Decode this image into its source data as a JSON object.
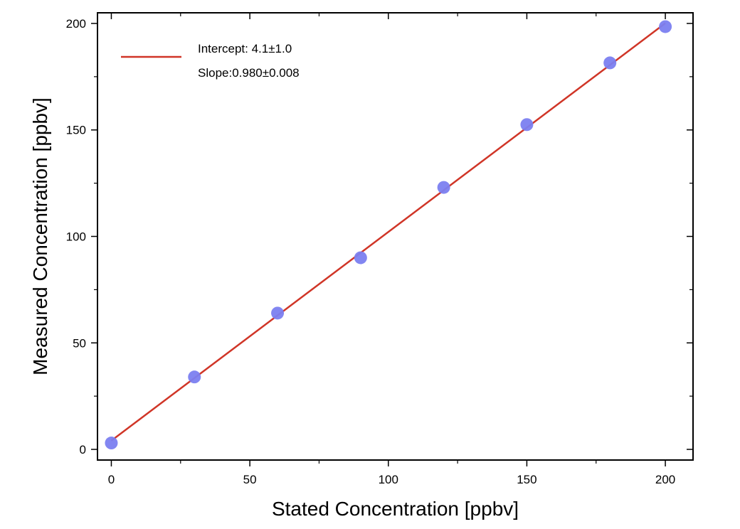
{
  "chart_data": {
    "type": "scatter",
    "title": "",
    "xlabel": "Stated Concentration [ppbv]",
    "ylabel": "Measured Concentration [ppbv]",
    "xlim": [
      -5,
      210
    ],
    "ylim": [
      -5,
      205
    ],
    "xticks": [
      0,
      50,
      100,
      150,
      200
    ],
    "yticks": [
      0,
      50,
      100,
      150,
      200
    ],
    "xtick_labels": [
      "0",
      "50",
      "100",
      "150",
      "200"
    ],
    "ytick_labels": [
      "0",
      "50",
      "100",
      "150",
      "200"
    ],
    "grid": false,
    "legend_position": "top-left",
    "series": [
      {
        "kind": "points",
        "color": "#7b7ff0",
        "x": [
          0,
          30,
          60,
          90,
          120,
          150,
          180,
          200
        ],
        "y": [
          3,
          34,
          64,
          90,
          123,
          152.5,
          181.5,
          198.5
        ]
      },
      {
        "kind": "fit-line",
        "color": "#d03527",
        "x": [
          0,
          200
        ],
        "y": [
          4.1,
          200.1
        ]
      }
    ],
    "legend": {
      "line1": "Intercept: 4.1±1.0",
      "line2": "Slope:0.980±0.008"
    }
  }
}
